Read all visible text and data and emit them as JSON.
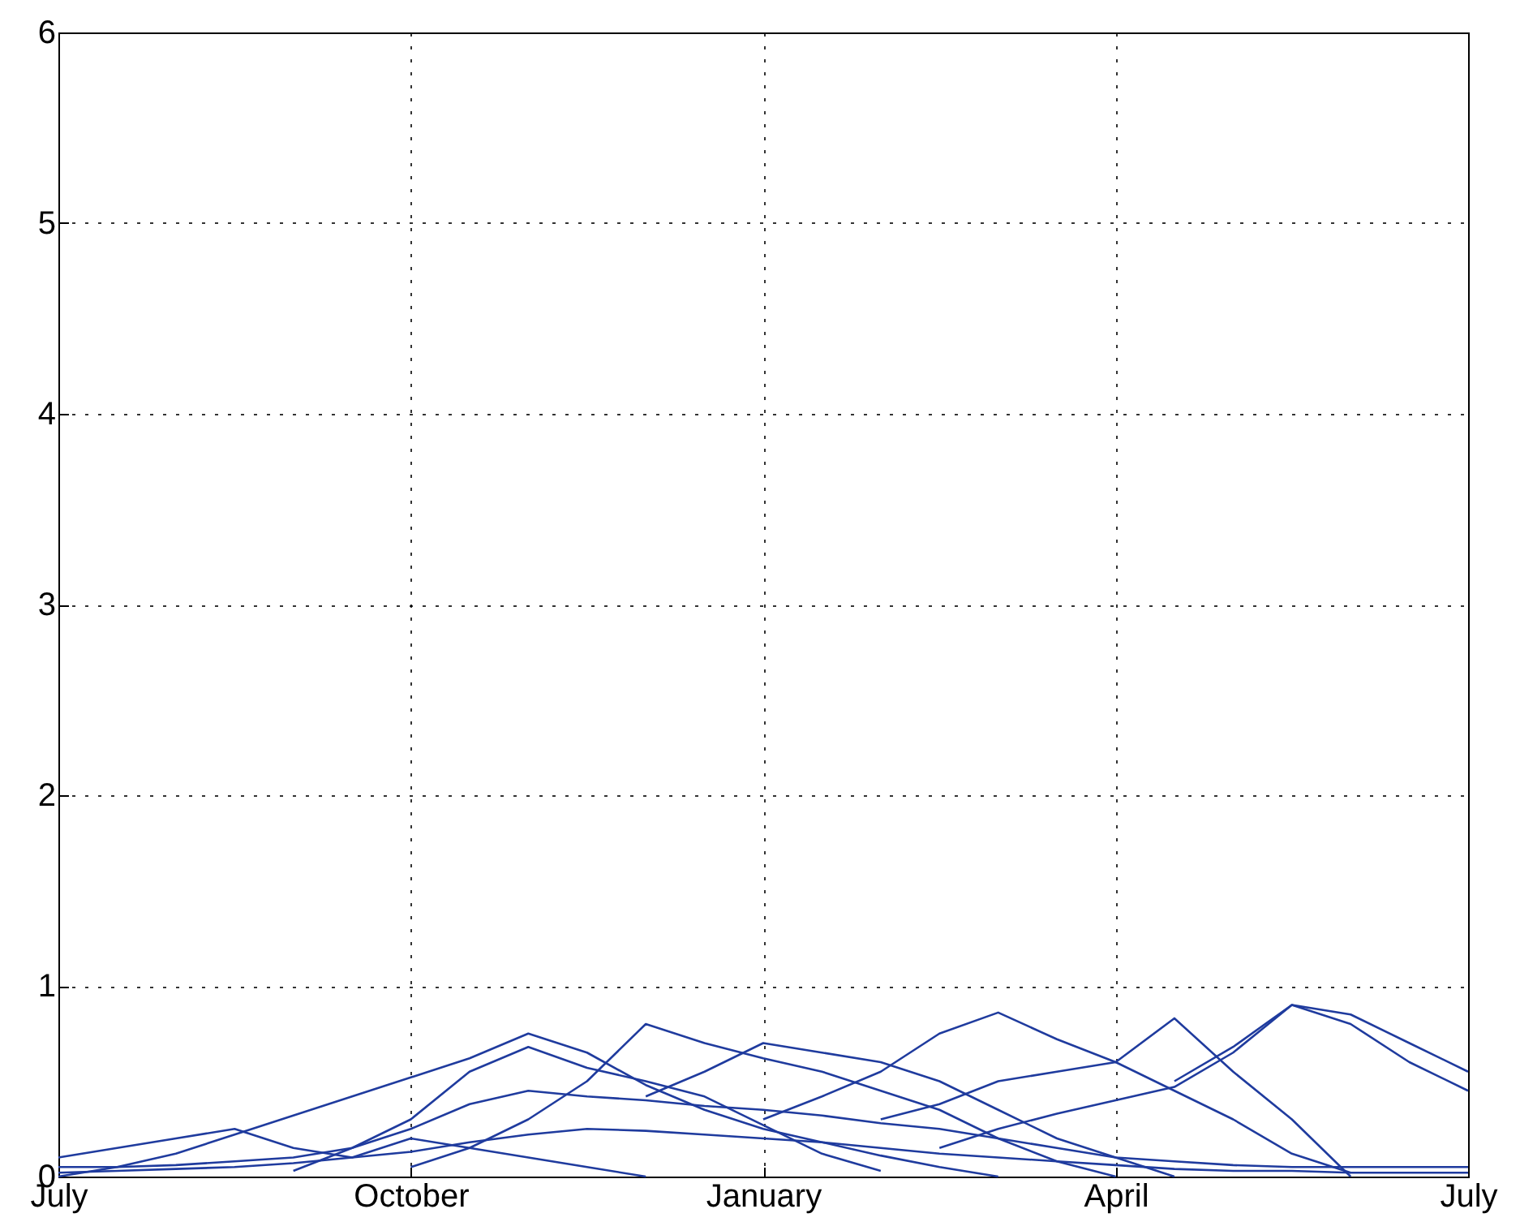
{
  "chart_data": {
    "type": "line",
    "categories": [
      "July",
      null,
      null,
      null,
      null,
      null,
      "October",
      null,
      null,
      null,
      null,
      null,
      "January",
      null,
      null,
      null,
      null,
      null,
      "April",
      null,
      null,
      null,
      null,
      null,
      "July"
    ],
    "ylim": [
      0,
      6
    ],
    "yticks": [
      0,
      1,
      2,
      3,
      4,
      5,
      6
    ],
    "grid": true,
    "line_style": "solid",
    "marker": "none",
    "series": [
      {
        "color": "#1f3b9e",
        "values": [
          0.0,
          0.05,
          0.12,
          0.22,
          0.32,
          0.42,
          0.52,
          0.62,
          0.75,
          0.65,
          0.48,
          0.35,
          0.25,
          0.18,
          0.11,
          0.05,
          0.0,
          null,
          null,
          null,
          null,
          null,
          null,
          null,
          null
        ]
      },
      {
        "color": "#1f3b9e",
        "values": [
          null,
          null,
          null,
          null,
          0.03,
          0.15,
          0.3,
          0.55,
          0.68,
          0.57,
          0.5,
          0.42,
          0.27,
          0.12,
          0.03,
          null,
          null,
          null,
          null,
          null,
          null,
          null,
          null,
          null,
          null
        ]
      },
      {
        "color": "#1f3b9e",
        "values": [
          null,
          null,
          null,
          null,
          null,
          null,
          0.05,
          0.15,
          0.3,
          0.5,
          0.8,
          0.7,
          0.62,
          0.55,
          0.45,
          0.35,
          0.2,
          0.08,
          0.0,
          null,
          null,
          null,
          null,
          null,
          null
        ]
      },
      {
        "color": "#1f3b9e",
        "values": [
          null,
          null,
          null,
          null,
          null,
          null,
          null,
          null,
          null,
          null,
          null,
          null,
          0.3,
          0.42,
          0.55,
          0.75,
          0.86,
          0.72,
          0.6,
          0.45,
          0.3,
          0.12,
          0.02,
          null,
          null
        ]
      },
      {
        "color": "#1f3b9e",
        "values": [
          null,
          null,
          null,
          null,
          null,
          null,
          null,
          null,
          null,
          null,
          null,
          null,
          null,
          null,
          0.3,
          0.38,
          0.5,
          0.55,
          0.6,
          0.83,
          0.55,
          0.3,
          0.0,
          null,
          null
        ]
      },
      {
        "color": "#1f3b9e",
        "values": [
          null,
          null,
          null,
          null,
          null,
          null,
          null,
          null,
          null,
          null,
          null,
          null,
          null,
          null,
          null,
          0.15,
          0.25,
          0.33,
          0.4,
          0.47,
          0.65,
          0.9,
          0.85,
          0.7,
          0.55
        ]
      },
      {
        "color": "#1f3b9e",
        "values": [
          null,
          null,
          null,
          null,
          null,
          null,
          null,
          null,
          null,
          null,
          null,
          null,
          null,
          null,
          null,
          null,
          null,
          null,
          null,
          0.5,
          0.68,
          0.9,
          0.8,
          0.6,
          0.45
        ]
      },
      {
        "color": "#1f3b9e",
        "values": [
          null,
          null,
          null,
          null,
          null,
          null,
          null,
          null,
          null,
          null,
          0.42,
          0.55,
          0.7,
          0.65,
          0.6,
          0.5,
          0.35,
          0.2,
          0.1,
          0.0,
          null,
          null,
          null,
          null,
          null
        ]
      },
      {
        "color": "#1f3b9e",
        "values": [
          0.05,
          0.05,
          0.06,
          0.08,
          0.1,
          0.15,
          0.25,
          0.38,
          0.45,
          0.42,
          0.4,
          0.37,
          0.35,
          0.32,
          0.28,
          0.25,
          0.2,
          0.15,
          0.1,
          0.08,
          0.06,
          0.05,
          0.05,
          0.05,
          0.05
        ]
      },
      {
        "color": "#1f3b9e",
        "values": [
          0.02,
          0.03,
          0.04,
          0.05,
          0.07,
          0.1,
          0.13,
          0.18,
          0.22,
          0.25,
          0.24,
          0.22,
          0.2,
          0.18,
          0.15,
          0.12,
          0.1,
          0.08,
          0.06,
          0.04,
          0.03,
          0.03,
          0.02,
          0.02,
          0.02
        ]
      },
      {
        "color": "#1f3b9e",
        "values": [
          0.1,
          0.15,
          0.2,
          0.25,
          0.15,
          0.1,
          0.2,
          0.15,
          0.1,
          0.05,
          0.0,
          null,
          null,
          null,
          null,
          null,
          null,
          null,
          null,
          null,
          null,
          null,
          null,
          null,
          null
        ]
      }
    ]
  }
}
